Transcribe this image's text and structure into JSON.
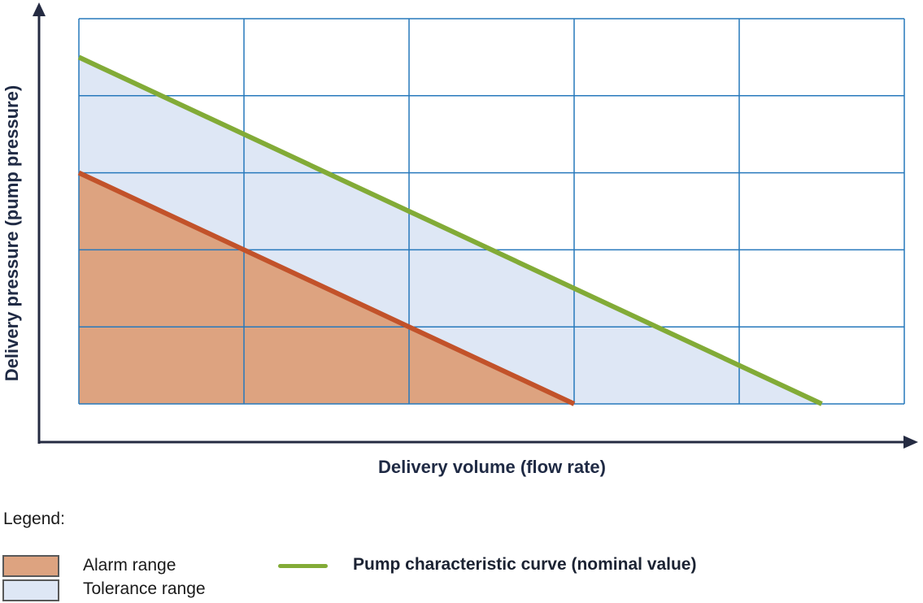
{
  "colors": {
    "axis": "#252b42",
    "grid": "#2779bc",
    "axis_text": "#1f2a44",
    "alarm_fill": "#dda380",
    "tolerance_fill": "#dee7f5",
    "nominal_line": "#82ab37",
    "alarm_line": "#c2522a"
  },
  "legend": {
    "title": "Legend:",
    "items": [
      {
        "label": "Alarm range",
        "swatch": "#dda380",
        "border": "#595959"
      },
      {
        "label": "Tolerance range",
        "swatch": "#dee7f5",
        "border": "#595959"
      },
      {
        "label": "Pump characteristic curve (nominal value)",
        "line_color": "#82ab37"
      }
    ]
  },
  "chart_data": {
    "type": "area",
    "title": "",
    "xlabel": "Delivery volume (flow rate)",
    "ylabel": "Delivery pressure (pump pressure)",
    "x_range": [
      0,
      5
    ],
    "y_range": [
      0,
      5
    ],
    "grid": true,
    "grid_color": "#2779bc",
    "legend_position": "below",
    "axes_style": "unlabeled arrows, qualitative axes (no tick values shown)",
    "series": [
      {
        "name": "Tolerance range",
        "kind": "area",
        "fill": "#dee7f5",
        "polygon": [
          [
            0,
            3
          ],
          [
            0,
            4.5
          ],
          [
            4.5,
            0
          ],
          [
            3,
            0
          ]
        ]
      },
      {
        "name": "Alarm range",
        "kind": "area",
        "fill": "#dda380",
        "polygon": [
          [
            0,
            0
          ],
          [
            0,
            3
          ],
          [
            3,
            0
          ]
        ]
      },
      {
        "name": "Alarm range boundary",
        "kind": "line",
        "color": "#c2522a",
        "points": [
          [
            0,
            3
          ],
          [
            3,
            0
          ]
        ]
      },
      {
        "name": "Pump characteristic curve (nominal value)",
        "kind": "line",
        "color": "#82ab37",
        "points": [
          [
            0,
            4.5
          ],
          [
            4.5,
            0
          ]
        ]
      }
    ]
  }
}
